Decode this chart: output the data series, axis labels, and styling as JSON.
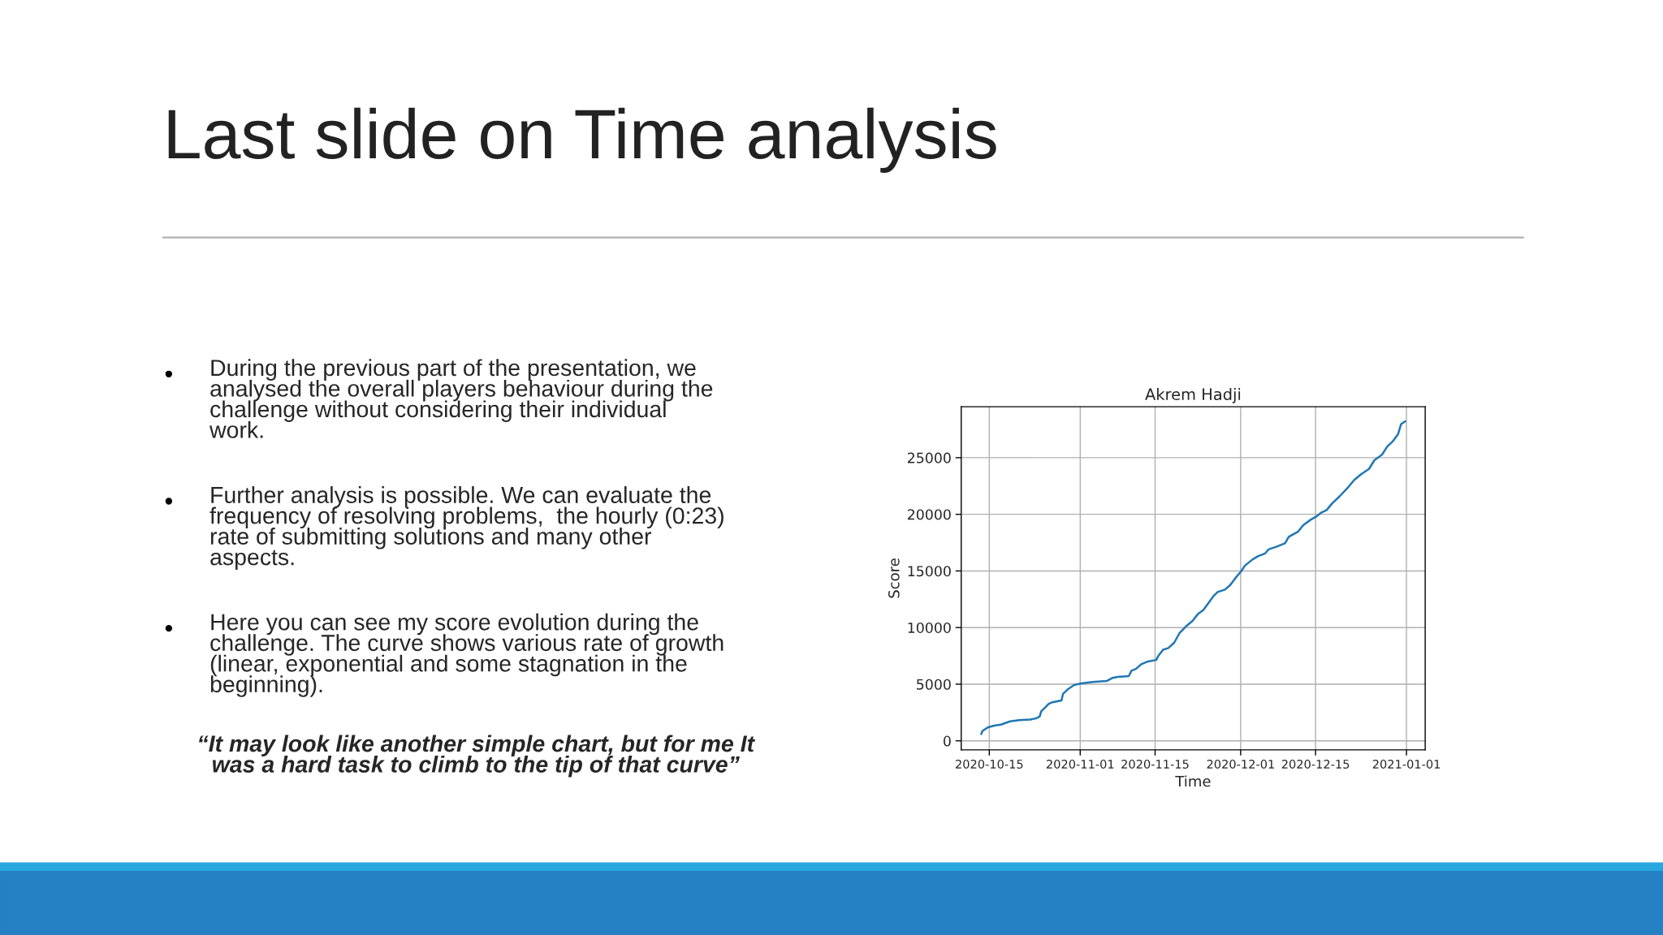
{
  "chart_data": {
    "type": "line",
    "title": "Akrem Hadji",
    "xlabel": "Time",
    "ylabel": "Score",
    "x": [
      "2020-10-13T12:00",
      "2020-10-13T17:00",
      "2020-10-14T17:00",
      "2020-10-15T22:00",
      "2020-10-17T05:00",
      "2020-10-17T22:00",
      "2020-10-18T22:00",
      "2020-10-20T14:00",
      "2020-10-22T17:00",
      "2020-10-23T17:00",
      "2020-10-24T10:00",
      "2020-10-24T17:00",
      "2020-10-25T10:00",
      "2020-10-26T02:00",
      "2020-10-26T19:00",
      "2020-10-28T12:00",
      "2020-10-28T19:00",
      "2020-10-29T19:00",
      "2020-10-30T22:00",
      "2020-11-01T05:00",
      "2020-11-03T07:00",
      "2020-11-06T00:00",
      "2020-11-07T00:00",
      "2020-11-08T00:00",
      "2020-11-10T02:00",
      "2020-11-10T14:00",
      "2020-11-11T10:00",
      "2020-11-12T10:00",
      "2020-11-13T12:00",
      "2020-11-15T05:00",
      "2020-11-15T14:00",
      "2020-11-16T12:00",
      "2020-11-17T12:00",
      "2020-11-18T14:00",
      "2020-11-19T14:00",
      "2020-11-21T00:00",
      "2020-11-22T00:00",
      "2020-11-23T00:00",
      "2020-11-24T00:00",
      "2020-11-25T00:00",
      "2020-11-26T00:00",
      "2020-11-26T17:00",
      "2020-11-28T02:00",
      "2020-11-29T02:00",
      "2020-11-30T02:00",
      "2020-12-01T02:00",
      "2020-12-01T19:00",
      "2020-12-03T05:00",
      "2020-12-04T05:00",
      "2020-12-05T14:00",
      "2020-12-06T05:00",
      "2020-12-07T14:00",
      "2020-12-09T07:00",
      "2020-12-10T00:00",
      "2020-12-11T17:00",
      "2020-12-12T17:00",
      "2020-12-14T02:00",
      "2020-12-15T05:00",
      "2020-12-16T02:00",
      "2020-12-17T02:00",
      "2020-12-18T02:00",
      "2020-12-19T12:00",
      "2020-12-20T22:00",
      "2020-12-22T05:00",
      "2020-12-23T14:00",
      "2020-12-25T00:00",
      "2020-12-26T00:00",
      "2020-12-27T10:00",
      "2020-12-28T10:00",
      "2020-12-29T10:00",
      "2020-12-30T10:00",
      "2020-12-31T00:00",
      "2020-12-31T19:00"
    ],
    "series": [
      {
        "color": "#1f77b4",
        "values": [
          600,
          860,
          1180,
          1340,
          1430,
          1560,
          1720,
          1820,
          1880,
          1980,
          2140,
          2610,
          2930,
          3250,
          3410,
          3570,
          4150,
          4590,
          4940,
          5070,
          5200,
          5290,
          5550,
          5640,
          5710,
          6190,
          6350,
          6760,
          6980,
          7140,
          7490,
          8040,
          8200,
          8670,
          9530,
          10200,
          10590,
          11190,
          11540,
          12180,
          12820,
          13140,
          13360,
          13780,
          14410,
          14960,
          15470,
          16010,
          16290,
          16550,
          16900,
          17120,
          17440,
          18020,
          18460,
          19040,
          19520,
          19830,
          20150,
          20380,
          20950,
          21590,
          22290,
          23020,
          23560,
          24010,
          24780,
          25260,
          25990,
          26430,
          27070,
          27970,
          28220
        ]
      }
    ],
    "xlim": [
      "2020-10-09T18:00",
      "2021-01-04T12:00"
    ],
    "xticks": [
      {
        "value": "2020-10-15",
        "label": "2020-10-15"
      },
      {
        "value": "2020-11-01",
        "label": "2020-11-01"
      },
      {
        "value": "2020-11-15",
        "label": "2020-11-15"
      },
      {
        "value": "2020-12-01",
        "label": "2020-12-01"
      },
      {
        "value": "2020-12-15",
        "label": "2020-12-15"
      },
      {
        "value": "2021-01-01",
        "label": "2021-01-01"
      }
    ],
    "ylim": [
      -800,
      29500
    ],
    "yticks": [
      0,
      5000,
      10000,
      15000,
      20000,
      25000
    ],
    "grid": true,
    "marker": "none",
    "line_style": "solid",
    "annotations": [
      "Last slide on Time analysis",
      "During the previous part of the presentation, we\nanalysed the overall players behaviour during the\nchallenge without considering their individual\nwork.",
      "Further analysis is possible. We can evaluate the\nfrequency of resolving problems,  the hourly (0:23)\nrate of submitting solutions and many other\naspects.",
      "Here you can see my score evolution during the\nchallenge. The curve shows various rate of growth\n(linear, exponential and some stagnation in the\nbeginning).",
      "“It may look like another simple chart, but for me It\nwas a hard task to climb to the tip of that curve”"
    ]
  }
}
